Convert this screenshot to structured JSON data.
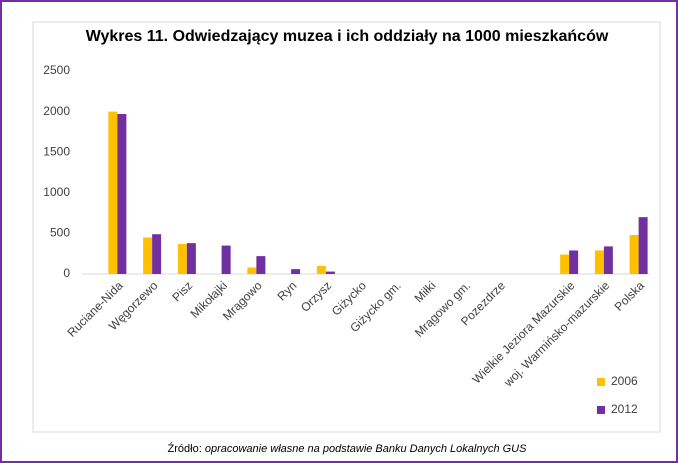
{
  "chart_data": {
    "type": "bar",
    "title": "Wykres 11. Odwiedzający muzea i ich oddziały na 1000 mieszkańców",
    "categories": [
      "Ruciane-Nida",
      "Węgorzewo",
      "Pisz",
      "Mikołajki",
      "Mrągowo",
      "Ryn",
      "Orzysz",
      "Giżycko",
      "Giżycko gm.",
      "Miłki",
      "Mrągowo gm.",
      "Pozezdrze",
      null,
      "Wielkie Jeziora Mazurskie",
      "woj. Warmińsko-mazurskie",
      "Polska"
    ],
    "series": [
      {
        "name": "2006",
        "color": "#ffc000",
        "values": [
          2000,
          450,
          370,
          null,
          80,
          null,
          100,
          null,
          null,
          null,
          null,
          null,
          null,
          240,
          290,
          480
        ]
      },
      {
        "name": "2012",
        "color": "#7030a0",
        "values": [
          1970,
          490,
          380,
          350,
          220,
          60,
          30,
          null,
          null,
          null,
          null,
          null,
          null,
          290,
          340,
          700
        ]
      }
    ],
    "ylim": [
      0,
      2500
    ],
    "yticks": [
      0,
      500,
      1000,
      1500,
      2000,
      2500
    ],
    "grid": false,
    "legend": "right",
    "source_label": "Źródło:",
    "source_text": "opracowanie własne na podstawie Banku Danych Lokalnych GUS"
  }
}
